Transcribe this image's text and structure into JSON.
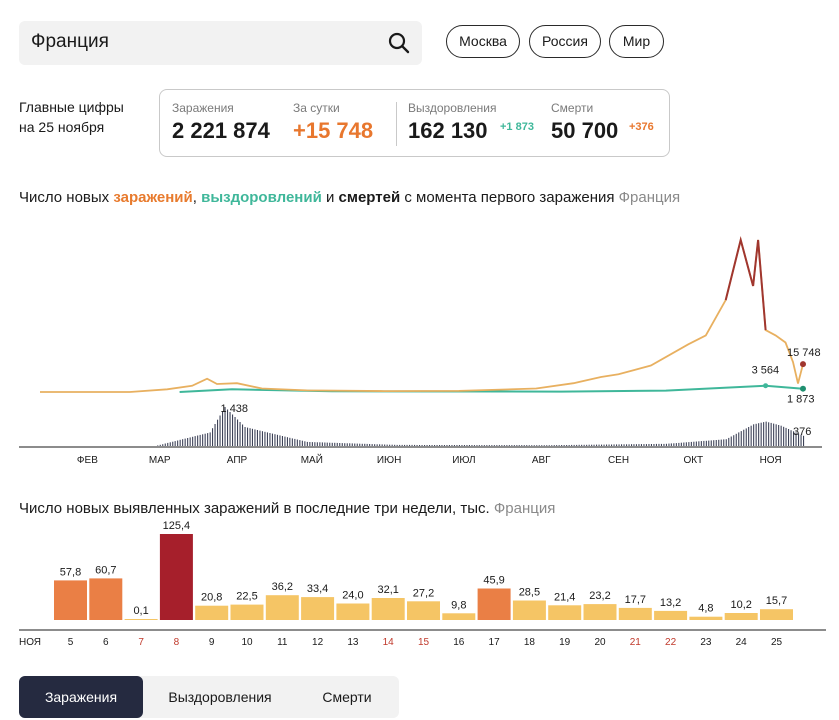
{
  "search": {
    "value": "Франция"
  },
  "regions": [
    "Москва",
    "Россия",
    "Мир"
  ],
  "main_figures": {
    "line1": "Главные цифры",
    "line2": "на 25 ноября"
  },
  "stats": {
    "infections": {
      "label": "Заражения",
      "value": "2 221 874"
    },
    "per_day": {
      "label": "За сутки",
      "value": "+15 748"
    },
    "recovered": {
      "label": "Выздоровления",
      "value": "162 130",
      "delta": "+1 873"
    },
    "deaths": {
      "label": "Смерти",
      "value": "50 700",
      "delta": "+376"
    }
  },
  "chart1": {
    "title_parts": [
      "Число новых ",
      "заражений",
      ", ",
      "выздоровлений",
      " и ",
      "смертей",
      " с момента первого заражения"
    ],
    "region": "Франция",
    "months": [
      "ФЕВ",
      "МАР",
      "АПР",
      "МАЙ",
      "ИЮН",
      "ИЮЛ",
      "АВГ",
      "СЕН",
      "ОКТ",
      "НОЯ"
    ],
    "annotations": {
      "infections_last": "15 748",
      "recovered_peak": "3 564",
      "recovered_last": "1 873",
      "deaths_peak": "1 438",
      "deaths_last": "376"
    }
  },
  "chart2": {
    "title": "Число новых выявленных заражений в последние три недели, тыс.",
    "region": "Франция",
    "month_label": "НОЯ"
  },
  "tabs": [
    "Заражения",
    "Выздоровления",
    "Смерти"
  ],
  "colors": {
    "infections": "#e8b060",
    "infections_peak": "#a0362f",
    "recovered": "#3fb79a",
    "deaths": "#3d4257",
    "bar_light": "#f5c565",
    "bar_orange": "#ea7f45",
    "bar_red": "#a61f2b",
    "weekend": "#c0392b"
  },
  "chart_data": [
    {
      "type": "line",
      "title": "Число новых заражений, выздоровлений и смертей с момента первого заражения",
      "x_range": [
        "2020-01-24",
        "2020-11-25"
      ],
      "series": [
        {
          "name": "заражений",
          "points": [
            [
              "2020-02-29",
              0
            ],
            [
              "2020-03-15",
              1500
            ],
            [
              "2020-03-25",
              3500
            ],
            [
              "2020-03-31",
              7500
            ],
            [
              "2020-04-04",
              4500
            ],
            [
              "2020-04-12",
              5000
            ],
            [
              "2020-04-22",
              2000
            ],
            [
              "2020-05-10",
              900
            ],
            [
              "2020-06-10",
              500
            ],
            [
              "2020-07-10",
              600
            ],
            [
              "2020-08-10",
              2000
            ],
            [
              "2020-08-25",
              5000
            ],
            [
              "2020-09-05",
              8500
            ],
            [
              "2020-09-12",
              10000
            ],
            [
              "2020-09-25",
              15000
            ],
            [
              "2020-10-10",
              27000
            ],
            [
              "2020-10-17",
              32000
            ],
            [
              "2020-10-25",
              52000
            ],
            [
              "2020-10-31",
              86000
            ],
            [
              "2020-11-05",
              60000
            ],
            [
              "2020-11-07",
              86000
            ],
            [
              "2020-11-10",
              35000
            ],
            [
              "2020-11-14",
              32000
            ],
            [
              "2020-11-18",
              28000
            ],
            [
              "2020-11-21",
              17000
            ],
            [
              "2020-11-23",
              4800
            ],
            [
              "2020-11-25",
              15748
            ]
          ]
        },
        {
          "name": "выздоровлений",
          "points": [
            [
              "2020-03-20",
              0
            ],
            [
              "2020-04-10",
              1500
            ],
            [
              "2020-05-20",
              400
            ],
            [
              "2020-08-20",
              200
            ],
            [
              "2020-10-01",
              800
            ],
            [
              "2020-11-10",
              3564
            ],
            [
              "2020-11-25",
              1873
            ]
          ]
        },
        {
          "name": "смертей",
          "points": [
            [
              "2020-03-10",
              0
            ],
            [
              "2020-04-01",
              500
            ],
            [
              "2020-04-07",
              1438
            ],
            [
              "2020-04-15",
              700
            ],
            [
              "2020-05-10",
              150
            ],
            [
              "2020-06-15",
              40
            ],
            [
              "2020-08-15",
              30
            ],
            [
              "2020-10-01",
              80
            ],
            [
              "2020-10-25",
              250
            ],
            [
              "2020-11-05",
              800
            ],
            [
              "2020-11-10",
              900
            ],
            [
              "2020-11-16",
              750
            ],
            [
              "2020-11-25",
              376
            ]
          ]
        }
      ]
    },
    {
      "type": "bar",
      "title": "Число новых выявленных заражений в последние три недели, тыс.",
      "categories": [
        "5",
        "6",
        "7",
        "8",
        "9",
        "10",
        "11",
        "12",
        "13",
        "14",
        "15",
        "16",
        "17",
        "18",
        "19",
        "20",
        "21",
        "22",
        "23",
        "24",
        "25"
      ],
      "values": [
        57.8,
        60.7,
        0.1,
        125.4,
        20.8,
        22.5,
        36.2,
        33.4,
        24.0,
        32.1,
        27.2,
        9.8,
        45.9,
        28.5,
        21.4,
        23.2,
        17.7,
        13.2,
        4.8,
        10.2,
        15.7
      ],
      "labels": [
        "57,8",
        "60,7",
        "0,1",
        "125,4",
        "20,8",
        "22,5",
        "36,2",
        "33,4",
        "24,0",
        "32,1",
        "27,2",
        "9,8",
        "45,9",
        "28,5",
        "21,4",
        "23,2",
        "17,7",
        "13,2",
        "4,8",
        "10,2",
        "15,7"
      ],
      "weekend": [
        false,
        false,
        true,
        true,
        false,
        false,
        false,
        false,
        false,
        true,
        true,
        false,
        false,
        false,
        false,
        false,
        true,
        true,
        false,
        false,
        false
      ]
    }
  ]
}
